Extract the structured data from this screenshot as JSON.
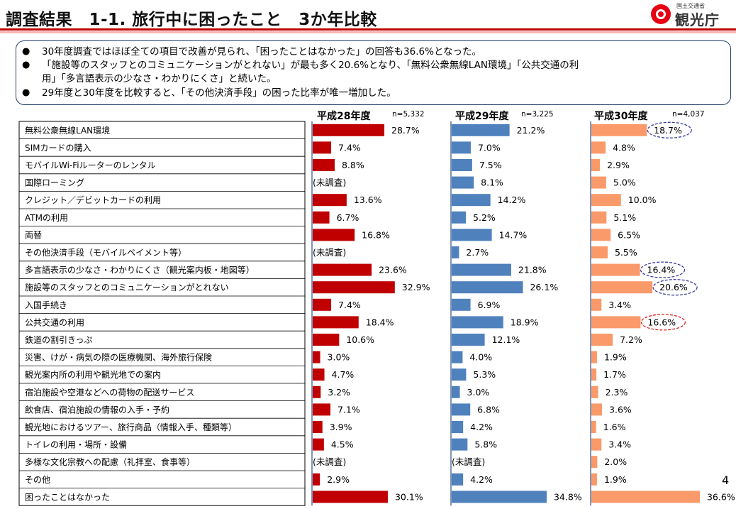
{
  "header": {
    "title": "調査結果　1-1. 旅行中に困ったこと　3か年比較",
    "logo_ministry": "国土交通省",
    "logo_name": "観光庁"
  },
  "summary": {
    "bullets": [
      "30年度調査ではほぼ全ての項目で改善が見られ、「困ったことはなかった」の回答も36.6%となった。",
      "「施設等のスタッフとのコミュニケーションがとれない」が最も多く20.6%となり、「無料公衆無線LAN環境」「公共交通の利",
      "用」「多言語表示の少なさ・わかりにくさ」と続いた。",
      "29年度と30年度を比較すると、「その他決済手段」の困った比率が唯一増加した。"
    ]
  },
  "page_number": "4",
  "chart_data": {
    "type": "bar",
    "orientation": "horizontal",
    "unit": "%",
    "categories": [
      "無料公衆無線LAN環境",
      "SIMカードの購入",
      "モバイルWi-Fiルーターのレンタル",
      "国際ローミング",
      "クレジット／デビットカードの利用",
      "ATMの利用",
      "両替",
      "その他決済手段（モバイルペイメント等）",
      "多言語表示の少なさ・わかりにくさ（観光案内板・地図等）",
      "施設等のスタッフとのコミュニケーションがとれない",
      "入国手続き",
      "公共交通の利用",
      "鉄道の割引きっぷ",
      "災害、けが・病気の際の医療機関、海外旅行保険",
      "観光案内所の利用や観光地での案内",
      "宿泊施設や空港などへの荷物の配送サービス",
      "飲食店、宿泊施設の情報の入手・予約",
      "観光地におけるツアー、旅行商品（情報入手、種類等）",
      "トイレの利用・場所・設備",
      "多様な文化宗教への配慮（礼拝室、食事等）",
      "その他",
      "困ったことはなかった"
    ],
    "not_surveyed_label": "(未調査)",
    "series": [
      {
        "name": "平成28年度",
        "n_label": "n=5,332",
        "color": "#c00000",
        "values": [
          28.7,
          7.4,
          8.8,
          null,
          13.6,
          6.7,
          16.8,
          null,
          23.6,
          32.9,
          7.4,
          18.4,
          10.6,
          3.0,
          4.7,
          3.2,
          7.1,
          3.9,
          4.5,
          null,
          2.9,
          30.1
        ]
      },
      {
        "name": "平成29年度",
        "n_label": "n=3,225",
        "color": "#4f81bd",
        "values": [
          21.2,
          7.0,
          7.5,
          8.1,
          14.2,
          5.2,
          14.7,
          2.7,
          21.8,
          26.1,
          6.9,
          18.9,
          12.1,
          4.0,
          5.3,
          3.0,
          6.8,
          4.2,
          5.8,
          null,
          4.2,
          34.8
        ]
      },
      {
        "name": "平成30年度",
        "n_label": "n=4,037",
        "color": "#fa9a6a",
        "values": [
          18.7,
          4.8,
          2.9,
          5.0,
          10.0,
          5.1,
          6.5,
          5.5,
          16.4,
          20.6,
          3.4,
          16.6,
          7.2,
          1.9,
          1.7,
          2.3,
          3.6,
          1.6,
          3.4,
          2.0,
          1.9,
          36.6
        ],
        "highlighted": [
          {
            "index": 0,
            "color": "#3c3ca0"
          },
          {
            "index": 8,
            "color": "#3c3ca0"
          },
          {
            "index": 9,
            "color": "#3c3ca0"
          },
          {
            "index": 11,
            "color": "#e02020"
          }
        ]
      }
    ]
  }
}
